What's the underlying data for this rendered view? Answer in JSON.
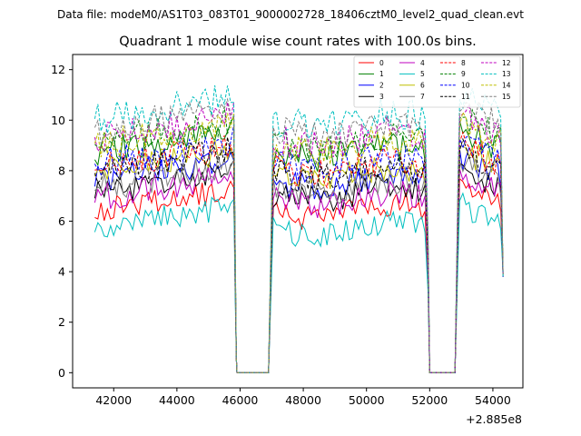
{
  "chart_data": {
    "type": "line",
    "suptitle": "Data file: modeM0/AS1T03_083T01_9000002728_18406cztM0_level2_quad_clean.evt",
    "title": "Quadrant 1 module wise count rates with 100.0s bins.",
    "xlabel": "",
    "ylabel": "",
    "x_offset_label": "+2.885e8",
    "xlim": [
      40700,
      54950
    ],
    "ylim": [
      -0.6,
      12.6
    ],
    "x_ticks": [
      42000,
      44000,
      46000,
      48000,
      50000,
      52000,
      54000
    ],
    "x_tick_labels": [
      "42000",
      "44000",
      "46000",
      "48000",
      "50000",
      "52000",
      "54000"
    ],
    "y_ticks": [
      0,
      2,
      4,
      6,
      8,
      10,
      12
    ],
    "y_tick_labels": [
      "0",
      "2",
      "4",
      "6",
      "8",
      "10",
      "12"
    ],
    "legend_position": "upper-right",
    "segments": [
      {
        "start": 41400,
        "end": 45800
      },
      {
        "start": 47050,
        "end": 51900
      },
      {
        "start": 52950,
        "end": 54300
      }
    ],
    "gaps": [
      {
        "start": 45900,
        "end": 46950
      },
      {
        "start": 52000,
        "end": 52850
      }
    ],
    "series": [
      {
        "name": "0",
        "color": "#ff0000",
        "dash": "solid",
        "level": 6.4,
        "seed": 1
      },
      {
        "name": "1",
        "color": "#008000",
        "dash": "solid",
        "level": 8.7,
        "seed": 2
      },
      {
        "name": "2",
        "color": "#0000ff",
        "dash": "solid",
        "level": 7.6,
        "seed": 3
      },
      {
        "name": "3",
        "color": "#000000",
        "dash": "solid",
        "level": 7.1,
        "seed": 4
      },
      {
        "name": "4",
        "color": "#bf00bf",
        "dash": "solid",
        "level": 6.9,
        "seed": 5
      },
      {
        "name": "5",
        "color": "#00bfbf",
        "dash": "solid",
        "level": 5.7,
        "seed": 6
      },
      {
        "name": "6",
        "color": "#bfbf00",
        "dash": "solid",
        "level": 7.9,
        "seed": 7
      },
      {
        "name": "7",
        "color": "#808080",
        "dash": "solid",
        "level": 7.3,
        "seed": 8
      },
      {
        "name": "8",
        "color": "#ff0000",
        "dash": "dashed",
        "level": 8.1,
        "seed": 9
      },
      {
        "name": "9",
        "color": "#008000",
        "dash": "dashed",
        "level": 9.1,
        "seed": 10
      },
      {
        "name": "10",
        "color": "#0000ff",
        "dash": "dashed",
        "level": 8.3,
        "seed": 11
      },
      {
        "name": "11",
        "color": "#000000",
        "dash": "dashed",
        "level": 7.9,
        "seed": 12
      },
      {
        "name": "12",
        "color": "#bf00bf",
        "dash": "dashed",
        "level": 9.3,
        "seed": 13
      },
      {
        "name": "13",
        "color": "#00bfbf",
        "dash": "dashed",
        "level": 10.0,
        "seed": 14
      },
      {
        "name": "14",
        "color": "#bfbf00",
        "dash": "dashed",
        "level": 9.0,
        "seed": 15
      },
      {
        "name": "15",
        "color": "#808080",
        "dash": "dashed",
        "level": 9.6,
        "seed": 16
      }
    ]
  }
}
